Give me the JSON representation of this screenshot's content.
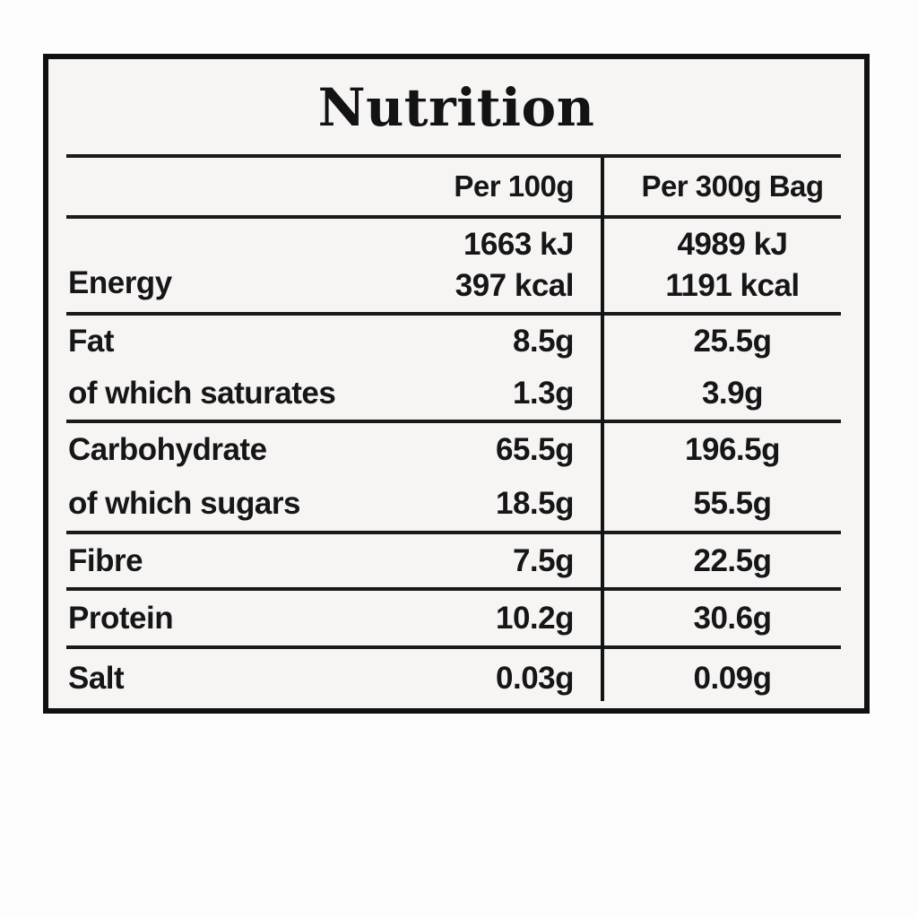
{
  "nutrition_label": {
    "title": "Nutrition",
    "header": {
      "per_100g": "Per 100g",
      "per_300g": "Per 300g Bag"
    },
    "energy": {
      "label": "Energy",
      "kj_per_100g": "1663 kJ",
      "kcal_per_100g": "397 kcal",
      "kj_per_300g": "4989 kJ",
      "kcal_per_300g": "1191 kcal"
    },
    "fat": {
      "label": "Fat",
      "per_100g": "8.5g",
      "per_300g": "25.5g"
    },
    "saturates": {
      "label": "of which saturates",
      "per_100g": "1.3g",
      "per_300g": "3.9g"
    },
    "carbohydrate": {
      "label": "Carbohydrate",
      "per_100g": "65.5g",
      "per_300g": "196.5g"
    },
    "sugars": {
      "label": "of which sugars",
      "per_100g": "18.5g",
      "per_300g": "55.5g"
    },
    "fibre": {
      "label": "Fibre",
      "per_100g": "7.5g",
      "per_300g": "22.5g"
    },
    "protein": {
      "label": "Protein",
      "per_100g": "10.2g",
      "per_300g": "30.6g"
    },
    "salt": {
      "label": "Salt",
      "per_100g": "0.03g",
      "per_300g": "0.09g"
    }
  },
  "colors": {
    "border": "#111111",
    "rule": "#1a1a1a",
    "text": "#161616",
    "label_background": "#f7f4f4",
    "page_background": "#fefdfd"
  }
}
